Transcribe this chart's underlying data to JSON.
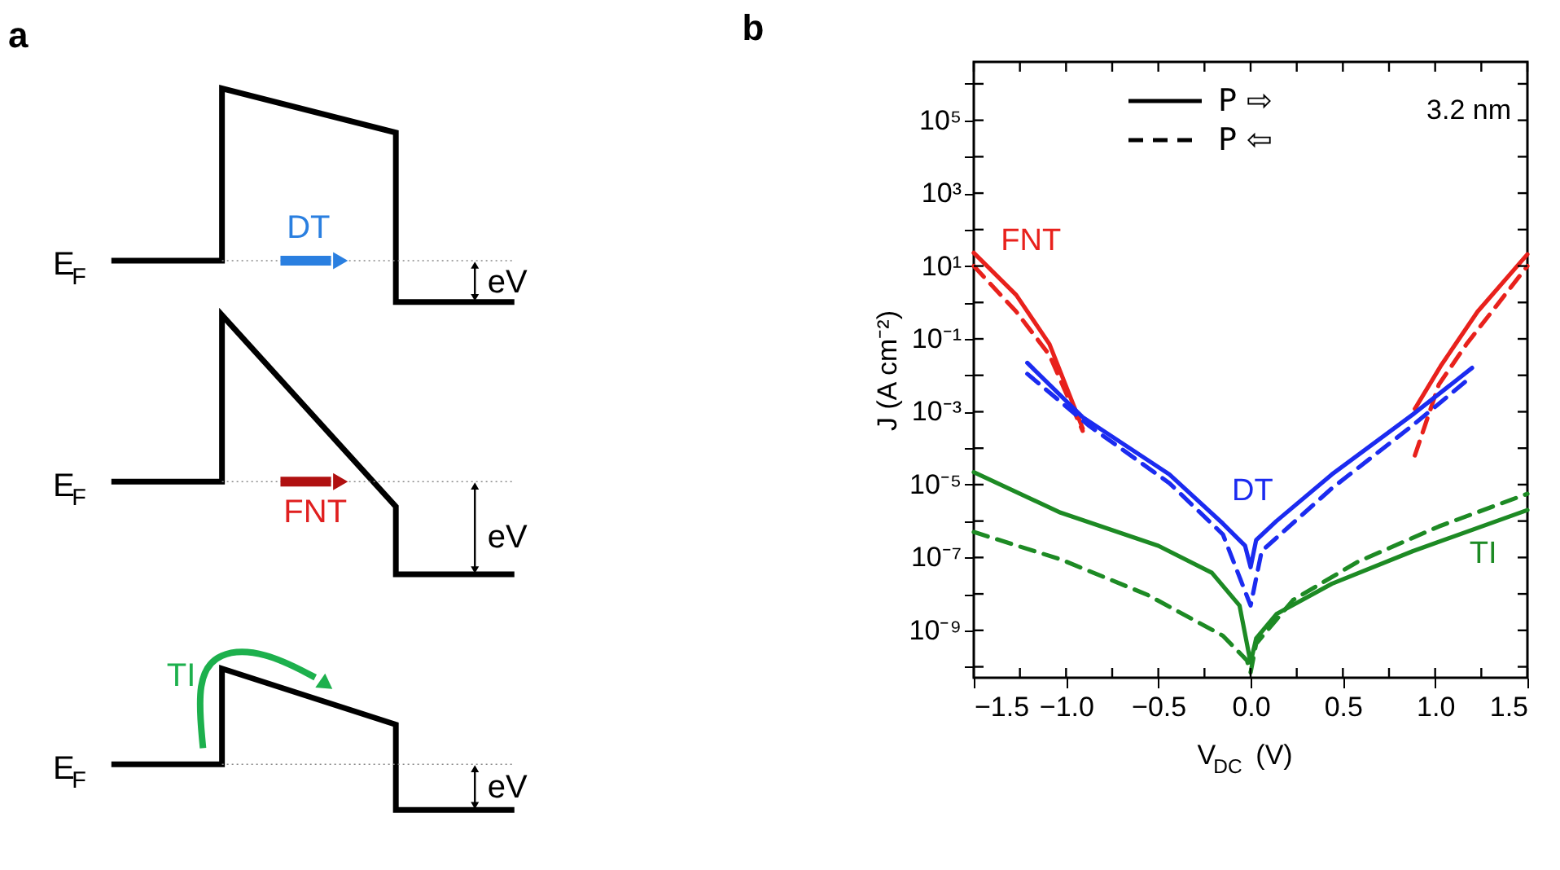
{
  "chart_data": [
    {
      "type": "other",
      "title": "a",
      "annotations": [
        "E$_{F}$",
        "DT",
        "eV",
        "E$_{F}$",
        "FNT",
        "eV",
        "TI",
        "E$_{F}$",
        "eV"
      ]
    },
    {
      "type": "line",
      "title": "b",
      "xlabel": "V$_{DC}$ (V)",
      "ylabel": "J (A cm⁻²)",
      "log": "y",
      "grid": false,
      "marker": "none",
      "xlim": [
        -1.5,
        1.5
      ],
      "xticks": [
        {
          "value": -1.5,
          "label": "−1.5"
        },
        {
          "value": -1.25,
          "label": null
        },
        {
          "value": -1.0,
          "label": "−1.0"
        },
        {
          "value": -0.75,
          "label": null
        },
        {
          "value": -0.5,
          "label": "−0.5"
        },
        {
          "value": -0.25,
          "label": null
        },
        {
          "value": 0,
          "label": "0.0"
        },
        {
          "value": 0.25,
          "label": null
        },
        {
          "value": 0.5,
          "label": "0.5"
        },
        {
          "value": 0.75,
          "label": null
        },
        {
          "value": 1.0,
          "label": "1.0"
        },
        {
          "value": 1.25,
          "label": null
        },
        {
          "value": 1.5,
          "label": "1.5"
        }
      ],
      "ylim": [
        5e-11,
        4000000.0
      ],
      "yticks": [
        {
          "value": 1e-10,
          "label": null
        },
        {
          "value": 1e-09,
          "label": "10⁻⁹"
        },
        {
          "value": 1e-08,
          "label": null
        },
        {
          "value": 1e-07,
          "label": "10⁻⁷"
        },
        {
          "value": 1e-06,
          "label": null
        },
        {
          "value": 1e-05,
          "label": "10⁻⁵"
        },
        {
          "value": 0.0001,
          "label": null
        },
        {
          "value": 0.001,
          "label": "10⁻³"
        },
        {
          "value": 0.01,
          "label": null
        },
        {
          "value": 0.1,
          "label": "10⁻¹"
        },
        {
          "value": 1,
          "label": null
        },
        {
          "value": 10,
          "label": "10¹"
        },
        {
          "value": 100,
          "label": null
        },
        {
          "value": 1000,
          "label": "10³"
        },
        {
          "value": 10000,
          "label": null
        },
        {
          "value": 100000,
          "label": "10⁵"
        },
        {
          "value": 1000000,
          "label": null
        }
      ],
      "series": [
        {
          "color": "#e8211c",
          "line_style": "solid",
          "x": [
            -1.5,
            -1.27,
            -1.09,
            -0.91,
            0,
            0.89,
            1.03,
            1.23,
            1.5
          ],
          "values": [
            23,
            1.6,
            0.072,
            0.00035,
            null,
            0.0012,
            0.018,
            0.56,
            21
          ]
        },
        {
          "color": "#e8211c",
          "line_style": "dashed",
          "x": [
            -1.5,
            -1.27,
            -1.09,
            -0.91,
            0,
            0.89,
            1.02,
            1.17,
            1.5
          ],
          "values": [
            10,
            0.56,
            0.036,
            0.0003,
            null,
            6.3e-05,
            0.0056,
            0.072,
            10
          ]
        },
        {
          "color": "#1b2bf0",
          "line_style": "solid",
          "x": [
            -1.21,
            -0.91,
            -0.44,
            -0.15,
            -0.03,
            0,
            0.03,
            0.14,
            0.44,
            0.88,
            1.2
          ],
          "values": [
            0.022,
            0.00071,
            1.9e-05,
            8.5e-07,
            2.1e-07,
            5.4e-08,
            3e-07,
            1e-06,
            1.9e-05,
            0.00085,
            0.016
          ]
        },
        {
          "color": "#1b2bf0",
          "line_style": "dashed",
          "x": [
            -1.21,
            -0.88,
            -0.44,
            -0.15,
            0,
            0.06,
            0.44,
            0.88,
            1.2
          ],
          "values": [
            0.011,
            0.00043,
            1.1e-05,
            4.3e-07,
            4.8e-09,
            1.5e-07,
            7.9e-06,
            0.00043,
            0.0095
          ]
        },
        {
          "color": "#1d8a24",
          "line_style": "solid",
          "x": [
            -1.5,
            -1.03,
            -0.5,
            -0.21,
            -0.06,
            0,
            0.03,
            0.14,
            0.44,
            0.88,
            1.5
          ],
          "values": [
            2.2e-05,
            1.7e-06,
            2.1e-07,
            3.8e-08,
            4.8e-09,
            1.3e-10,
            6e-10,
            2.8e-09,
            1.9e-08,
            1.5e-07,
            2e-06
          ]
        },
        {
          "color": "#1d8a24",
          "line_style": "dashed",
          "x": [
            -1.5,
            -1.03,
            -0.56,
            -0.15,
            -0.02,
            0,
            0.03,
            0.23,
            0.58,
            1.02,
            1.5
          ],
          "values": [
            5e-07,
            8.9e-08,
            9.5e-09,
            7.1e-10,
            1.5e-10,
            7e-11,
            4.3e-10,
            6.8e-09,
            7.6e-08,
            7.1e-07,
            5.6e-06
          ]
        }
      ],
      "annotations": [
        "FNT",
        "DT",
        "TI",
        "P ⇨",
        "P ⇦",
        "3.2 nm"
      ]
    }
  ]
}
